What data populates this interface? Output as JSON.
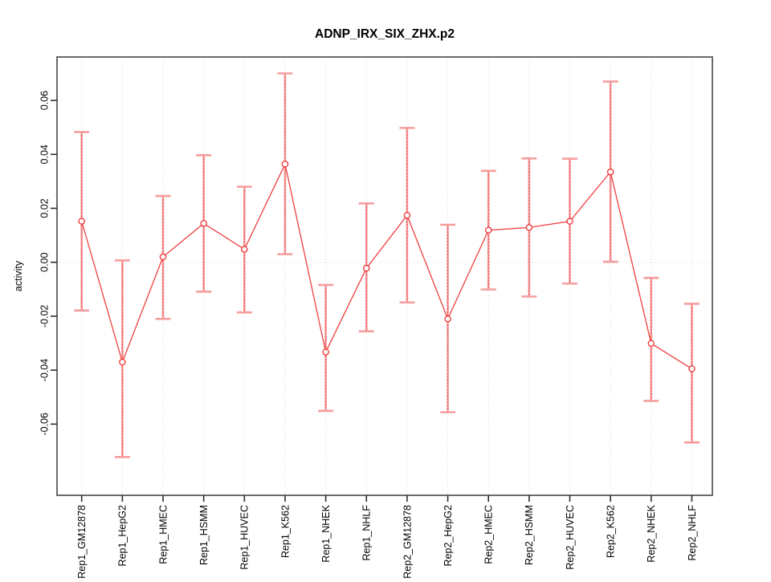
{
  "chart_data": {
    "type": "line",
    "title": "ADNP_IRX_SIX_ZHX.p2",
    "ylabel": "activity",
    "xlabel": "",
    "legend": null,
    "grid": {
      "vertical_dotted_per_category": true,
      "horizontal_dotted_at_zero": true
    },
    "categories": [
      "Rep1_GM12878",
      "Rep1_HepG2",
      "Rep1_HMEC",
      "Rep1_HSMM",
      "Rep1_HUVEC",
      "Rep1_K562",
      "Rep1_NHEK",
      "Rep1_NHLF",
      "Rep2_GM12878",
      "Rep2_HepG2",
      "Rep2_HMEC",
      "Rep2_HSMM",
      "Rep2_HUVEC",
      "Rep2_K562",
      "Rep2_NHEK",
      "Rep2_NHLF"
    ],
    "series": [
      {
        "name": "activity",
        "marker": "open-circle",
        "values": [
          0.0152,
          -0.037,
          0.002,
          0.0144,
          0.0048,
          0.0364,
          -0.0333,
          -0.0022,
          0.0174,
          -0.021,
          0.0119,
          0.0129,
          0.0152,
          0.0335,
          -0.0301,
          -0.0395
        ],
        "error_high": [
          0.0483,
          0.0007,
          0.0246,
          0.0397,
          0.028,
          0.07,
          -0.0084,
          0.0218,
          0.0498,
          0.0139,
          0.0339,
          0.0385,
          0.0384,
          0.067,
          -0.0058,
          -0.0154
        ],
        "error_low": [
          -0.0179,
          -0.0722,
          -0.021,
          -0.0109,
          -0.0186,
          0.003,
          -0.0551,
          -0.0256,
          -0.0149,
          -0.0556,
          -0.0101,
          -0.0127,
          -0.0079,
          0.0002,
          -0.0514,
          -0.0668
        ]
      }
    ],
    "yticks": [
      {
        "label": "0.06",
        "value": 0.06
      },
      {
        "label": "0.04",
        "value": 0.04
      },
      {
        "label": "0.02",
        "value": 0.02
      },
      {
        "label": "0.00",
        "value": 0.0
      },
      {
        "label": "-0.02",
        "value": -0.02
      },
      {
        "label": "-0.04",
        "value": -0.04
      },
      {
        "label": "-0.06",
        "value": -0.06
      }
    ],
    "ylim": [
      -0.0864,
      0.0761
    ],
    "tick_label_rotation_deg": 90,
    "colors": {
      "line": "#ee3f3f",
      "point_stroke": "#ee3f3f",
      "point_fill": "#ffffff",
      "error_bar": "#f59d9d",
      "error_bar_dotted_overlay": "#ee4545",
      "grid": "#d8d8d8",
      "zero_line": "#dadada",
      "box": "#6b6b6b",
      "tick": "#2e2e2e",
      "text": "#000000"
    }
  }
}
